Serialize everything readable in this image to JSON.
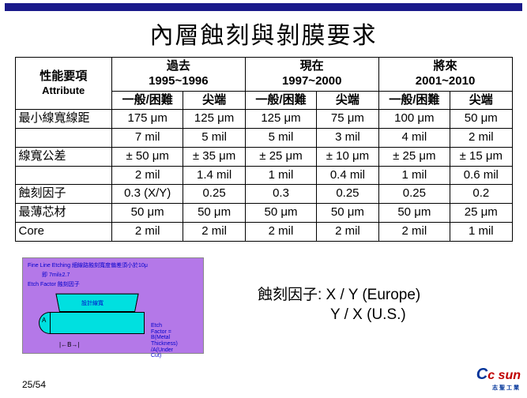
{
  "title": "內層蝕刻與剝膜要求",
  "table": {
    "attr_top": "性能要項",
    "attr_sub": "Attribute",
    "eras": [
      {
        "label_top": "過去",
        "label_sub": "1995~1996"
      },
      {
        "label_top": "現在",
        "label_sub": "1997~2000"
      },
      {
        "label_top": "將來",
        "label_sub": "2001~2010"
      }
    ],
    "subcols": [
      "一般/困難",
      "尖端",
      "一般/困難",
      "尖端",
      "一般/困難",
      "尖端"
    ],
    "rows": [
      {
        "label": "最小線寬線距",
        "cells": [
          "175 μm",
          "125 μm",
          "125 μm",
          "75 μm",
          "100 μm",
          "50 μm"
        ]
      },
      {
        "label": "",
        "cells": [
          "7 mil",
          "5 mil",
          "5 mil",
          "3 mil",
          "4 mil",
          "2 mil"
        ]
      },
      {
        "label": "線寬公差",
        "cells": [
          "± 50 μm",
          "± 35 μm",
          "± 25 μm",
          "± 10 μm",
          "± 25 μm",
          "± 15 μm"
        ]
      },
      {
        "label": "",
        "cells": [
          "2 mil",
          "1.4 mil",
          "1 mil",
          "0.4 mil",
          "1 mil",
          "0.6 mil"
        ]
      },
      {
        "label": "蝕刻因子",
        "cells": [
          "0.3 (X/Y)",
          "0.25",
          "0.3",
          "0.25",
          "0.25",
          "0.2"
        ]
      },
      {
        "label": "最薄芯材",
        "cells": [
          "50 μm",
          "50 μm",
          "50 μm",
          "50 μm",
          "50 μm",
          "25 μm"
        ]
      },
      {
        "label": "Core",
        "cells": [
          "2 mil",
          "2 mil",
          "2 mil",
          "2 mil",
          "2 mil",
          "1 mil"
        ]
      }
    ]
  },
  "diagram": {
    "line1": "Fine Line Etching 細線路蝕刻寬度偏差須小於10μ",
    "line2": "即 7mil±2.7",
    "line3": "Etch Factor 蝕刻因子",
    "inside": "設計線寬",
    "sidetext": "Etch Factor\n= B(Metal Thickness)\n/A(Under Cut)",
    "labelA": "A",
    "labelB": "|←B→|"
  },
  "note_line1": "蝕刻因子: X / Y (Europe)",
  "note_line2": "Y / X (U.S.)",
  "pagenum": "25/54",
  "logo": {
    "c": "C",
    "rest": "c sun",
    "sub": "志聖工業"
  }
}
